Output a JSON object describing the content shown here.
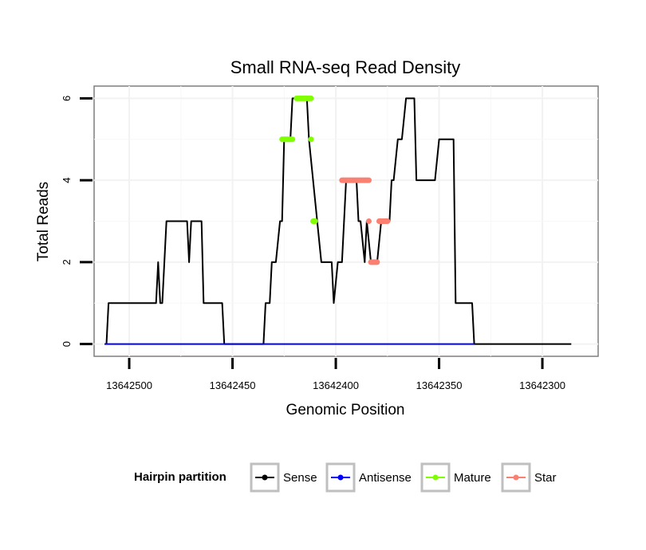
{
  "chart_data": {
    "type": "line",
    "title": "Small RNA-seq Read Density",
    "xlabel": "Genomic Position",
    "ylabel": "Total Reads",
    "xlim": [
      13642517,
      13642273
    ],
    "ylim": [
      -0.3,
      6.3
    ],
    "x_reversed": true,
    "grid": true,
    "x_ticks": [
      13642500,
      13642450,
      13642400,
      13642350,
      13642300
    ],
    "x_tick_labels": [
      "13642500",
      "13642450",
      "13642400",
      "13642350",
      "13642300"
    ],
    "y_ticks": [
      0,
      2,
      4,
      6
    ],
    "y_tick_labels": [
      "0",
      "2",
      "4",
      "6"
    ],
    "legend": {
      "title": "Hairpin partition",
      "position": "bottom",
      "entries": [
        {
          "label": "Sense",
          "color": "#000000"
        },
        {
          "label": "Antisense",
          "color": "#0000ff"
        },
        {
          "label": "Mature",
          "color": "#7fff00"
        },
        {
          "label": "Star",
          "color": "#fa8072"
        }
      ]
    },
    "series": [
      {
        "name": "Sense",
        "color": "#000000",
        "x": [
          13642511,
          13642510,
          13642487,
          13642486,
          13642485,
          13642484,
          13642482,
          13642479,
          13642472,
          13642471,
          13642470,
          13642468,
          13642465,
          13642464,
          13642455,
          13642454,
          13642435,
          13642434,
          13642432,
          13642431,
          13642429,
          13642427,
          13642426,
          13642425,
          13642422,
          13642421,
          13642414,
          13642413,
          13642407,
          13642405,
          13642402,
          13642401,
          13642399,
          13642398,
          13642397,
          13642395,
          13642391,
          13642390,
          13642389,
          13642388,
          13642386,
          13642385,
          13642383,
          13642380,
          13642378,
          13642375,
          13642374,
          13642373,
          13642372,
          13642370,
          13642368,
          13642366,
          13642362,
          13642361,
          13642359,
          13642356,
          13642352,
          13642350,
          13642349,
          13642346,
          13642343,
          13642342,
          13642334,
          13642333,
          13642331,
          13642325,
          13642286
        ],
        "values": [
          0,
          1,
          1,
          2,
          1,
          1,
          3,
          3,
          3,
          2,
          3,
          3,
          3,
          1,
          1,
          0,
          0,
          1,
          1,
          2,
          2,
          3,
          3,
          5,
          5,
          6,
          6,
          5,
          2,
          2,
          2,
          1,
          2,
          2,
          2,
          4,
          4,
          4,
          3,
          3,
          2,
          3,
          2,
          2,
          3,
          3,
          3,
          4,
          4,
          5,
          5,
          6,
          6,
          4,
          4,
          4,
          4,
          5,
          5,
          5,
          5,
          1,
          1,
          0,
          0,
          0,
          0
        ]
      },
      {
        "name": "Antisense",
        "color": "#0000ff",
        "x": [
          13642512,
          13642333
        ],
        "values": [
          0,
          0
        ]
      },
      {
        "name": "Mature",
        "color": "#7fff00",
        "segments": [
          {
            "x": [
              13642426,
              13642421
            ],
            "values": [
              5,
              5
            ]
          },
          {
            "x": [
              13642419,
              13642412
            ],
            "values": [
              6,
              6
            ]
          },
          {
            "x": [
              13642412,
              13642412
            ],
            "values": [
              5,
              5
            ]
          },
          {
            "x": [
              13642411,
              13642410
            ],
            "values": [
              3,
              3
            ]
          }
        ]
      },
      {
        "name": "Star",
        "color": "#fa8072",
        "segments": [
          {
            "x": [
              13642397,
              13642384
            ],
            "values": [
              4,
              4
            ]
          },
          {
            "x": [
              13642384,
              13642384
            ],
            "values": [
              3,
              3
            ]
          },
          {
            "x": [
              13642383,
              13642380
            ],
            "values": [
              2,
              2
            ]
          },
          {
            "x": [
              13642379,
              13642375
            ],
            "values": [
              3,
              3
            ]
          }
        ]
      }
    ]
  }
}
